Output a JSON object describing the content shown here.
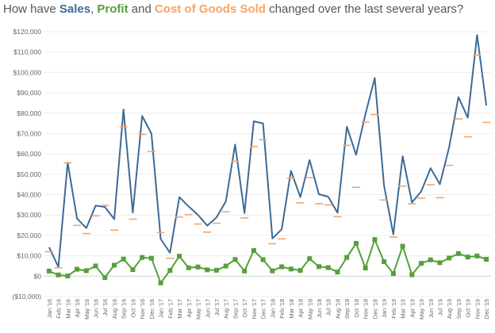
{
  "title": {
    "prefix": "How have ",
    "sales": "Sales",
    "sep1": ", ",
    "profit": "Profit",
    "sep2": " and ",
    "cogs": "Cost of Goods Sold",
    "suffix": " changed over the last several years?"
  },
  "colors": {
    "sales": "#3d6a98",
    "profit": "#54a03c",
    "cogs": "#f5a468",
    "grid": "#ececec",
    "zero": "#cfcfcf",
    "title_text": "#555555"
  },
  "chart_data": {
    "type": "line",
    "title": "How have Sales, Profit and Cost of Goods Sold changed over the last several years?",
    "xlabel": "",
    "ylabel": "",
    "ylim": [
      -10000,
      120000
    ],
    "yticks": [
      -10000,
      0,
      10000,
      20000,
      30000,
      40000,
      50000,
      60000,
      70000,
      80000,
      90000,
      100000,
      110000,
      120000
    ],
    "ytick_labels": [
      "($10,000)",
      "$0",
      "$10,000",
      "$20,000",
      "$30,000",
      "$40,000",
      "$50,000",
      "$60,000",
      "$70,000",
      "$80,000",
      "$90,000",
      "$100,000",
      "$110,000",
      "$120,000"
    ],
    "categories": [
      "Jan '16",
      "Feb '16",
      "Mar '16",
      "Apr '16",
      "May '16",
      "Jun '16",
      "Jul '16",
      "Aug '16",
      "Sep '16",
      "Oct '16",
      "Nov '16",
      "Dec '16",
      "Jan '17",
      "Feb '17",
      "Mar '17",
      "Apr '17",
      "May '17",
      "Jun '17",
      "Jul '17",
      "Aug '17",
      "Sep '17",
      "Oct '17",
      "Nov '17",
      "Dec '17",
      "Jan '18",
      "Feb '18",
      "Mar '18",
      "Apr '18",
      "May '18",
      "Jun '18",
      "Jul '18",
      "Aug '18",
      "Sep '18",
      "Oct '18",
      "Nov '18",
      "Dec '18",
      "Jan '19",
      "Feb '19",
      "Mar '19",
      "Apr '19",
      "May '19",
      "Jun '19",
      "Jul '19",
      "Aug '19",
      "Sep '19",
      "Oct '19",
      "Nov '19",
      "Dec '19"
    ],
    "series": [
      {
        "name": "Sales",
        "marker": "line",
        "values": [
          14200,
          4500,
          55700,
          28300,
          23600,
          34600,
          34000,
          28000,
          81800,
          31200,
          78600,
          70000,
          18200,
          11500,
          38800,
          34200,
          30100,
          24800,
          28900,
          36700,
          64600,
          31000,
          76000,
          75000,
          18500,
          23000,
          51700,
          38800,
          57000,
          40200,
          39000,
          31100,
          73400,
          59600,
          79600,
          97300,
          44500,
          20500,
          58900,
          36200,
          41600,
          53000,
          45100,
          63300,
          87900,
          77800,
          118400,
          83800
        ]
      },
      {
        "name": "Profit",
        "marker": "square",
        "values": [
          2500,
          600,
          100,
          3400,
          2700,
          5000,
          -700,
          5400,
          8400,
          3200,
          9200,
          8800,
          -3300,
          2800,
          9800,
          4100,
          4500,
          3100,
          2900,
          5000,
          8200,
          2500,
          12600,
          8100,
          2600,
          4600,
          3500,
          2800,
          8600,
          4700,
          4200,
          2000,
          9200,
          16100,
          4000,
          18000,
          7100,
          1300,
          14700,
          700,
          6300,
          8000,
          6600,
          8900,
          11100,
          9400,
          9900,
          8300
        ]
      },
      {
        "name": "Cost of Goods Sold",
        "marker": "dash",
        "values": [
          12000,
          4100,
          55600,
          24900,
          20900,
          29600,
          34700,
          22600,
          73400,
          28000,
          69600,
          61200,
          21400,
          8800,
          29000,
          30200,
          25600,
          21600,
          26000,
          31600,
          56400,
          28600,
          63600,
          67000,
          15900,
          18300,
          48100,
          36000,
          48400,
          35600,
          35000,
          29200,
          64200,
          43600,
          75600,
          79300,
          37400,
          19200,
          44200,
          35500,
          38300,
          44900,
          38500,
          54400,
          77200,
          68400,
          108500,
          75500
        ]
      }
    ]
  }
}
